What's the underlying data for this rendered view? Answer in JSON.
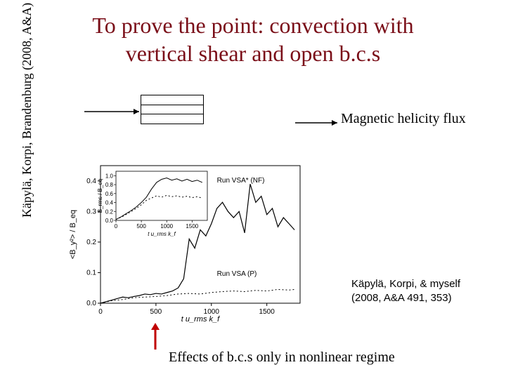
{
  "title_line1": "To prove the point: convection with",
  "title_line2": "vertical shear and open b.c.s",
  "vertical_citation": "Käpylä, Korpi, Brandenburg (2008, A&A)",
  "flux_label": "Magnetic helicity flux",
  "citation_line1": "Käpylä, Korpi, & myself",
  "citation_line2": "(2008, A&A 491, 353)",
  "bottom_text": "Effects of b.c.s only in nonlinear regime",
  "colors": {
    "title": "#7a0e18",
    "text": "#000000",
    "bg": "#ffffff",
    "red_arrow": "#c00000"
  },
  "main_chart": {
    "type": "line",
    "xlabel": "t u_rms k_f",
    "ylabel": "<B_y²> / B_eq²",
    "xlim": [
      0,
      1800
    ],
    "ylim": [
      0,
      0.45
    ],
    "xticks": [
      0,
      500,
      1000,
      1500
    ],
    "yticks": [
      0.0,
      0.1,
      0.2,
      0.3,
      0.4
    ],
    "axis_fontsize": 11,
    "tick_fontsize": 10,
    "run_labels": [
      "Run VSA* (NF)",
      "Run VSA (P)"
    ],
    "series_solid": {
      "x": [
        0,
        50,
        100,
        150,
        200,
        250,
        300,
        350,
        400,
        450,
        500,
        550,
        600,
        650,
        700,
        750,
        800,
        850,
        900,
        950,
        1000,
        1050,
        1100,
        1150,
        1200,
        1250,
        1300,
        1350,
        1400,
        1450,
        1500,
        1550,
        1600,
        1650,
        1700,
        1750
      ],
      "y": [
        0.0,
        0.005,
        0.01,
        0.015,
        0.02,
        0.018,
        0.022,
        0.025,
        0.03,
        0.028,
        0.032,
        0.03,
        0.035,
        0.04,
        0.05,
        0.08,
        0.21,
        0.18,
        0.24,
        0.22,
        0.26,
        0.31,
        0.33,
        0.3,
        0.28,
        0.3,
        0.23,
        0.39,
        0.33,
        0.35,
        0.29,
        0.31,
        0.25,
        0.28,
        0.26,
        0.24
      ],
      "color": "#000000",
      "linewidth": 1.2,
      "dash": "none"
    },
    "series_dotted": {
      "x": [
        0,
        100,
        200,
        300,
        400,
        500,
        600,
        700,
        800,
        900,
        1000,
        1100,
        1200,
        1300,
        1400,
        1500,
        1600,
        1700,
        1750
      ],
      "y": [
        0.0,
        0.008,
        0.012,
        0.018,
        0.02,
        0.022,
        0.025,
        0.03,
        0.032,
        0.03,
        0.035,
        0.038,
        0.04,
        0.038,
        0.042,
        0.04,
        0.045,
        0.043,
        0.045
      ],
      "color": "#000000",
      "linewidth": 1.0,
      "dash": "2,3"
    }
  },
  "inset_chart": {
    "type": "line",
    "ylabel": "B_rms / B_eq",
    "xlabel": "t u_rms k_f",
    "xlim": [
      0,
      1800
    ],
    "ylim": [
      0,
      1.1
    ],
    "xticks": [
      0,
      500,
      1000,
      1500
    ],
    "yticks": [
      0.0,
      0.2,
      0.4,
      0.6,
      0.8,
      1.0
    ],
    "tick_fontsize": 8,
    "series_solid": {
      "x": [
        0,
        100,
        200,
        300,
        400,
        500,
        600,
        700,
        800,
        900,
        1000,
        1100,
        1200,
        1300,
        1400,
        1500,
        1600,
        1700
      ],
      "y": [
        0.02,
        0.08,
        0.15,
        0.22,
        0.3,
        0.4,
        0.52,
        0.7,
        0.85,
        0.92,
        0.95,
        0.9,
        0.93,
        0.88,
        0.92,
        0.87,
        0.9,
        0.85
      ],
      "color": "#000000",
      "linewidth": 1.0,
      "dash": "none"
    },
    "series_dotted": {
      "x": [
        0,
        100,
        200,
        300,
        400,
        500,
        600,
        700,
        800,
        900,
        1000,
        1100,
        1200,
        1300,
        1400,
        1500,
        1600,
        1700
      ],
      "y": [
        0.02,
        0.07,
        0.13,
        0.2,
        0.27,
        0.35,
        0.45,
        0.5,
        0.55,
        0.52,
        0.56,
        0.53,
        0.55,
        0.52,
        0.54,
        0.51,
        0.53,
        0.5
      ],
      "color": "#000000",
      "linewidth": 1.0,
      "dash": "2,3"
    }
  }
}
